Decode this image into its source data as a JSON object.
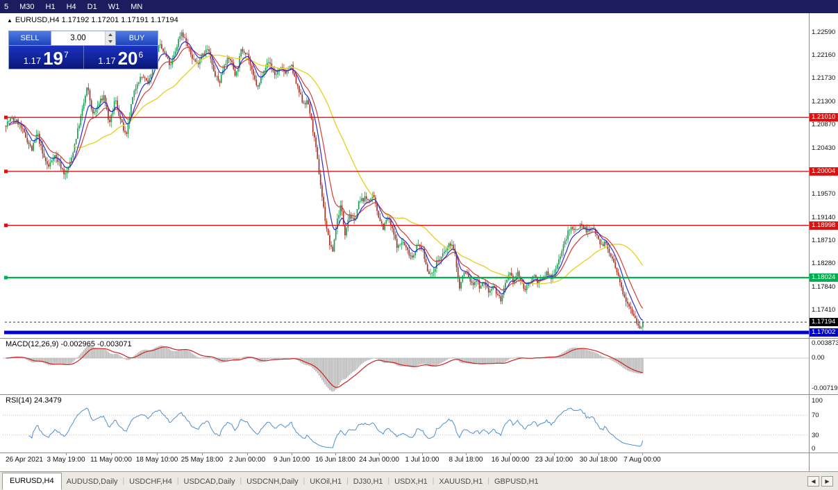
{
  "toolbar": {
    "timeframes": [
      "5",
      "M30",
      "H1",
      "H4",
      "D1",
      "W1",
      "MN"
    ]
  },
  "chart": {
    "collapse_icon": "▲",
    "title_symbol": "EURUSD,H4",
    "title_quotes": "1.17192 1.17201 1.17191 1.17194"
  },
  "trade_panel": {
    "sell_label": "SELL",
    "buy_label": "BUY",
    "volume": "3.00",
    "sell_price_main": "1.17",
    "sell_price_big": "19",
    "sell_price_sup": "7",
    "buy_price_main": "1.17",
    "buy_price_big": "20",
    "buy_price_sup": "6"
  },
  "price_scale": {
    "ticks": [
      {
        "label": "1.22590",
        "value": 1.2259
      },
      {
        "label": "1.22160",
        "value": 1.2216
      },
      {
        "label": "1.21730",
        "value": 1.2173
      },
      {
        "label": "1.21300",
        "value": 1.213
      },
      {
        "label": "1.20870",
        "value": 1.2087
      },
      {
        "label": "1.20430",
        "value": 1.2043
      },
      {
        "label": "1.19570",
        "value": 1.1957
      },
      {
        "label": "1.19140",
        "value": 1.1914
      },
      {
        "label": "1.18710",
        "value": 1.1871
      },
      {
        "label": "1.18280",
        "value": 1.1828
      },
      {
        "label": "1.17840",
        "value": 1.1784
      },
      {
        "label": "1.17410",
        "value": 1.1741
      }
    ]
  },
  "hlines": [
    {
      "label": "1.21010",
      "value": 1.2101,
      "color": "#dd1111",
      "thickness": 1.4
    },
    {
      "label": "1.20004",
      "value": 1.20004,
      "color": "#dd1111",
      "thickness": 1.4
    },
    {
      "label": "1.18998",
      "value": 1.18998,
      "color": "#dd1111",
      "thickness": 1.4
    },
    {
      "label": "1.18024",
      "value": 1.18024,
      "color": "#00b050",
      "thickness": 2.2
    },
    {
      "label": "1.17002",
      "value": 1.17002,
      "color": "#0000d0",
      "thickness": 5
    }
  ],
  "current_price": {
    "label": "1.17194",
    "value": 1.17194,
    "color": "#000000"
  },
  "macd_panel": {
    "label": "MACD(12,26,9) -0.002965 -0.003071",
    "scale": [
      "0.003873",
      "0.00",
      "-0.00719"
    ]
  },
  "rsi_panel": {
    "label": "RSI(14) 24.3479",
    "scale": [
      "100",
      "70",
      "30",
      "0"
    ]
  },
  "x_axis": {
    "labels": [
      "26 Apr 2021",
      "3 May 19:00",
      "11 May 00:00",
      "18 May 10:00",
      "25 May 18:00",
      "2 Jun 00:00",
      "9 Jun 10:00",
      "16 Jun 18:00",
      "24 Jun 00:00",
      "1 Jul 10:00",
      "8 Jul 18:00",
      "16 Jul 00:00",
      "23 Jul 10:00",
      "30 Jul 18:00",
      "7 Aug 00:00"
    ]
  },
  "tab_separator": "|",
  "tab_nav": {
    "left": "◀",
    "right": "▶"
  },
  "tabs": [
    {
      "label": "EURUSD,H4",
      "active": true
    },
    {
      "label": "AUDUSD,Daily",
      "active": false
    },
    {
      "label": "USDCHF,H4",
      "active": false
    },
    {
      "label": "USDCAD,Daily",
      "active": false
    },
    {
      "label": "USDCNH,Daily",
      "active": false
    },
    {
      "label": "UKOil,H1",
      "active": false
    },
    {
      "label": "DJ30,H1",
      "active": false
    },
    {
      "label": "USDX,H1",
      "active": false
    },
    {
      "label": "XAUUSD,H1",
      "active": false
    },
    {
      "label": "GBPUSD,H1",
      "active": false
    }
  ],
  "chart_data": {
    "type": "candlestick",
    "symbol": "EURUSD",
    "timeframe": "H4",
    "ohlc_display": {
      "open": "1.17192",
      "high": "1.17201",
      "low": "1.17191",
      "close": "1.17194"
    },
    "y_axis_range": [
      1.16899,
      1.2281
    ],
    "bar_count": 418,
    "up_color": "#1f9d54",
    "down_color": "#a93226",
    "price_path_anchors": [
      [
        8,
        1.2085
      ],
      [
        18,
        1.2098
      ],
      [
        28,
        1.2092
      ],
      [
        38,
        1.2068
      ],
      [
        48,
        1.204
      ],
      [
        56,
        1.2072
      ],
      [
        64,
        1.203
      ],
      [
        72,
        1.2008
      ],
      [
        80,
        1.2032
      ],
      [
        88,
        1.2015
      ],
      [
        96,
        1.1993
      ],
      [
        104,
        1.2018
      ],
      [
        112,
        1.2065
      ],
      [
        120,
        1.211
      ],
      [
        128,
        1.2158
      ],
      [
        136,
        1.2105
      ],
      [
        144,
        1.2125
      ],
      [
        152,
        1.2142
      ],
      [
        160,
        1.2086
      ],
      [
        168,
        1.2136
      ],
      [
        176,
        1.2095
      ],
      [
        184,
        1.2062
      ],
      [
        192,
        1.213
      ],
      [
        200,
        1.2168
      ],
      [
        208,
        1.2178
      ],
      [
        216,
        1.216
      ],
      [
        224,
        1.2215
      ],
      [
        232,
        1.2235
      ],
      [
        240,
        1.2218
      ],
      [
        248,
        1.2195
      ],
      [
        256,
        1.223
      ],
      [
        263,
        1.2262
      ],
      [
        270,
        1.2242
      ],
      [
        278,
        1.2215
      ],
      [
        286,
        1.22
      ],
      [
        294,
        1.2222
      ],
      [
        302,
        1.2228
      ],
      [
        310,
        1.2185
      ],
      [
        318,
        1.2165
      ],
      [
        326,
        1.2205
      ],
      [
        334,
        1.221
      ],
      [
        342,
        1.2178
      ],
      [
        350,
        1.2228
      ],
      [
        358,
        1.2222
      ],
      [
        366,
        1.218
      ],
      [
        374,
        1.2155
      ],
      [
        382,
        1.2192
      ],
      [
        390,
        1.2205
      ],
      [
        398,
        1.218
      ],
      [
        406,
        1.219
      ],
      [
        414,
        1.2186
      ],
      [
        422,
        1.2196
      ],
      [
        430,
        1.2158
      ],
      [
        438,
        1.213
      ],
      [
        446,
        1.2128
      ],
      [
        452,
        1.2085
      ],
      [
        458,
        1.2035
      ],
      [
        464,
        1.1975
      ],
      [
        470,
        1.1915
      ],
      [
        476,
        1.187
      ],
      [
        481,
        1.1848
      ],
      [
        487,
        1.1905
      ],
      [
        493,
        1.1938
      ],
      [
        499,
        1.1885
      ],
      [
        505,
        1.1922
      ],
      [
        512,
        1.1905
      ],
      [
        519,
        1.1942
      ],
      [
        526,
        1.195
      ],
      [
        533,
        1.1948
      ],
      [
        540,
        1.1952
      ],
      [
        547,
        1.192
      ],
      [
        554,
        1.1895
      ],
      [
        561,
        1.1915
      ],
      [
        568,
        1.1888
      ],
      [
        575,
        1.1858
      ],
      [
        582,
        1.187
      ],
      [
        589,
        1.1852
      ],
      [
        596,
        1.1841
      ],
      [
        603,
        1.1862
      ],
      [
        610,
        1.1858
      ],
      [
        617,
        1.182
      ],
      [
        624,
        1.1805
      ],
      [
        631,
        1.1832
      ],
      [
        638,
        1.184
      ],
      [
        645,
        1.1855
      ],
      [
        652,
        1.1868
      ],
      [
        658,
        1.1842
      ],
      [
        664,
        1.1782
      ],
      [
        670,
        1.1812
      ],
      [
        676,
        1.1808
      ],
      [
        682,
        1.1788
      ],
      [
        688,
        1.18
      ],
      [
        694,
        1.1782
      ],
      [
        700,
        1.1795
      ],
      [
        706,
        1.1775
      ],
      [
        712,
        1.179
      ],
      [
        718,
        1.1772
      ],
      [
        724,
        1.176
      ],
      [
        730,
        1.1788
      ],
      [
        736,
        1.1808
      ],
      [
        742,
        1.1795
      ],
      [
        748,
        1.1812
      ],
      [
        754,
        1.179
      ],
      [
        760,
        1.178
      ],
      [
        766,
        1.1798
      ],
      [
        772,
        1.1808
      ],
      [
        778,
        1.1792
      ],
      [
        784,
        1.1802
      ],
      [
        790,
        1.1812
      ],
      [
        796,
        1.18
      ],
      [
        802,
        1.1818
      ],
      [
        808,
        1.184
      ],
      [
        814,
        1.1862
      ],
      [
        820,
        1.1885
      ],
      [
        826,
        1.1898
      ],
      [
        832,
        1.189
      ],
      [
        838,
        1.1902
      ],
      [
        844,
        1.1895
      ],
      [
        850,
        1.1888
      ],
      [
        856,
        1.1895
      ],
      [
        862,
        1.1885
      ],
      [
        868,
        1.1862
      ],
      [
        874,
        1.1868
      ],
      [
        880,
        1.1848
      ],
      [
        886,
        1.183
      ],
      [
        892,
        1.1805
      ],
      [
        898,
        1.178
      ],
      [
        904,
        1.1762
      ],
      [
        910,
        1.1748
      ],
      [
        916,
        1.173
      ],
      [
        921,
        1.1716
      ],
      [
        925,
        1.1708
      ],
      [
        929,
        1.1722
      ]
    ],
    "moving_averages": [
      {
        "method": "sma",
        "period": 45,
        "color": "#e8d22a"
      },
      {
        "method": "ema",
        "period": 16,
        "color": "#d23b3b"
      },
      {
        "method": "ema",
        "period": 8,
        "color": "#2b2bd4"
      }
    ],
    "indicators": {
      "macd": {
        "label": "MACD(12,26,9)",
        "current_values": [
          -0.002965,
          -0.003071
        ],
        "scale_top": 0.003873,
        "scale_bottom": -0.00719,
        "histogram_color": "#b8b8b8",
        "signal_color": "#d02020"
      },
      "rsi": {
        "label": "RSI(14)",
        "current_value": 24.3479,
        "levels": [
          100,
          70,
          30,
          0
        ],
        "line_color": "#4f8fd0"
      }
    }
  }
}
